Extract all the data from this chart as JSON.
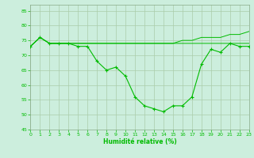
{
  "background_color": "#cceedd",
  "grid_color": "#aaccaa",
  "line_color": "#00bb00",
  "xlabel": "Humidité relative (%)",
  "ylim": [
    45,
    87
  ],
  "xlim": [
    0,
    23
  ],
  "yticks": [
    45,
    50,
    55,
    60,
    65,
    70,
    75,
    80,
    85
  ],
  "xticks": [
    0,
    1,
    2,
    3,
    4,
    5,
    6,
    7,
    8,
    9,
    10,
    11,
    12,
    13,
    14,
    15,
    16,
    17,
    18,
    19,
    20,
    21,
    22,
    23
  ],
  "y_main": [
    73,
    76,
    74,
    74,
    74,
    73,
    73,
    68,
    65,
    66,
    63,
    56,
    53,
    52,
    51,
    53,
    53,
    56,
    67,
    72,
    71,
    74,
    73,
    73
  ],
  "y_upper1": [
    73,
    76,
    74,
    74,
    74,
    74,
    74,
    74,
    74,
    74,
    74,
    74,
    74,
    74,
    74,
    74,
    75,
    75,
    76,
    76,
    76,
    77,
    77,
    78
  ],
  "y_upper2": [
    73,
    76,
    74,
    74,
    74,
    74,
    74,
    74,
    74,
    74,
    74,
    74,
    74,
    74,
    74,
    74,
    74,
    74,
    74,
    74,
    74,
    74,
    74,
    74
  ]
}
